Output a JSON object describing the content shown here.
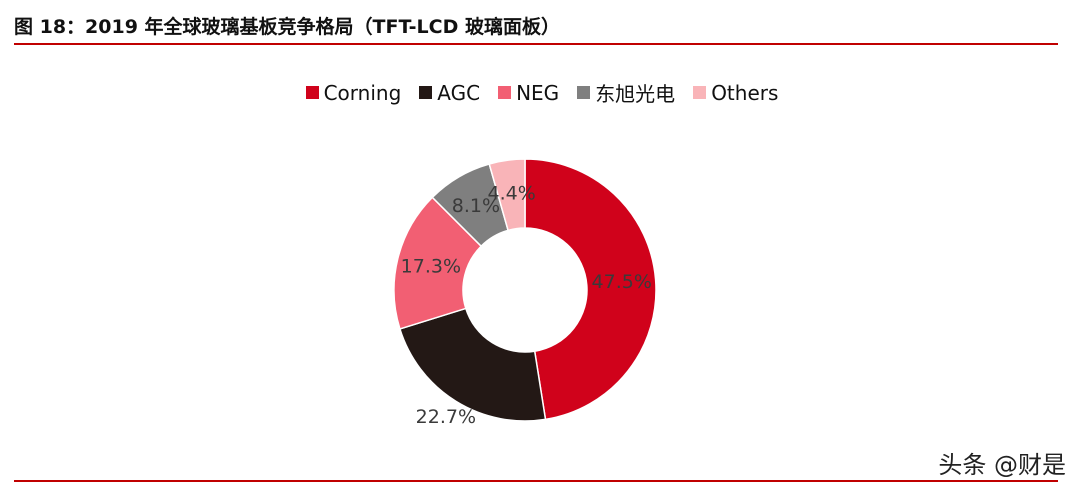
{
  "header": {
    "title": "图 18：2019 年全球玻璃基板竞争格局（TFT-LCD 玻璃面板）"
  },
  "watermark": {
    "text": "头条 @财是"
  },
  "chart_data": {
    "type": "pie",
    "donut": true,
    "legend_position": "top",
    "categories": [
      "Corning",
      "AGC",
      "NEG",
      "东旭光电",
      "Others"
    ],
    "values": [
      47.5,
      22.7,
      17.3,
      8.1,
      4.4
    ],
    "labels": [
      "47.5%",
      "22.7%",
      "17.3%",
      "8.1%",
      "4.4%"
    ],
    "colors": [
      "#d0021b",
      "#231815",
      "#f25f73",
      "#7f7f7f",
      "#f9b4b8"
    ]
  }
}
